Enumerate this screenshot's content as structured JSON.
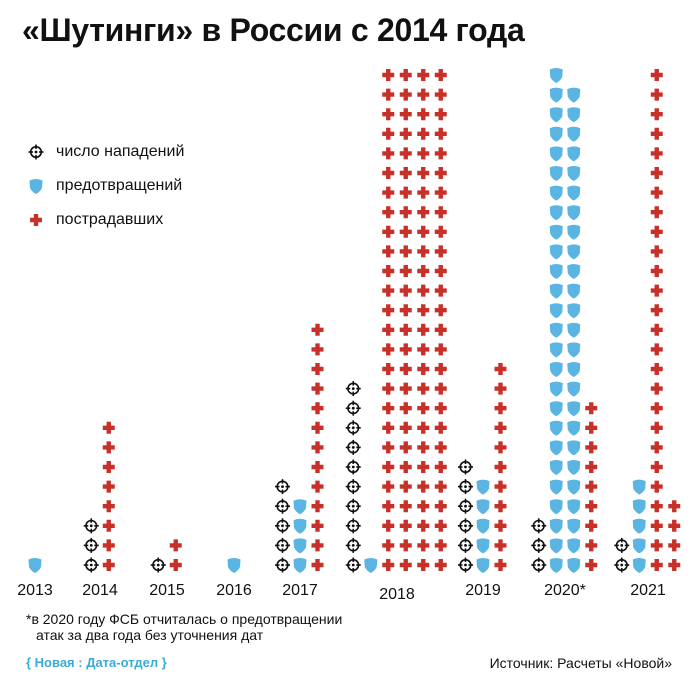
{
  "title": "«Шутинги» в России с 2014 года",
  "legend": {
    "attacks": "число нападений",
    "prevented": "предотвращений",
    "victims": "пострадавших"
  },
  "footnote": {
    "line1": "*в 2020 году ФСБ отчиталась о предотвращении",
    "line2": "атак за два года без уточнения дат"
  },
  "brand": "{ Новая : Дата-отдел }",
  "source": "Источник: Расчеты «Новой»",
  "colors": {
    "attacks": "#111111",
    "prevented": "#5ab5e2",
    "victims": "#c8312a"
  },
  "icons": {
    "attacks": "target-icon",
    "prevented": "shield-icon",
    "victims": "cross-icon"
  },
  "chart_data": {
    "type": "pictogram",
    "categories": [
      "2013",
      "2014",
      "2015",
      "2016",
      "2017",
      "2018",
      "2019",
      "2020*",
      "2021"
    ],
    "series": [
      {
        "name": "число нападений",
        "values": [
          0,
          3,
          1,
          0,
          5,
          10,
          6,
          3,
          2
        ]
      },
      {
        "name": "предотвращений",
        "values": [
          1,
          0,
          0,
          1,
          4,
          1,
          5,
          51,
          5
        ]
      },
      {
        "name": "пострадавших",
        "values": [
          0,
          8,
          2,
          0,
          13,
          104,
          11,
          9,
          30
        ]
      }
    ]
  }
}
